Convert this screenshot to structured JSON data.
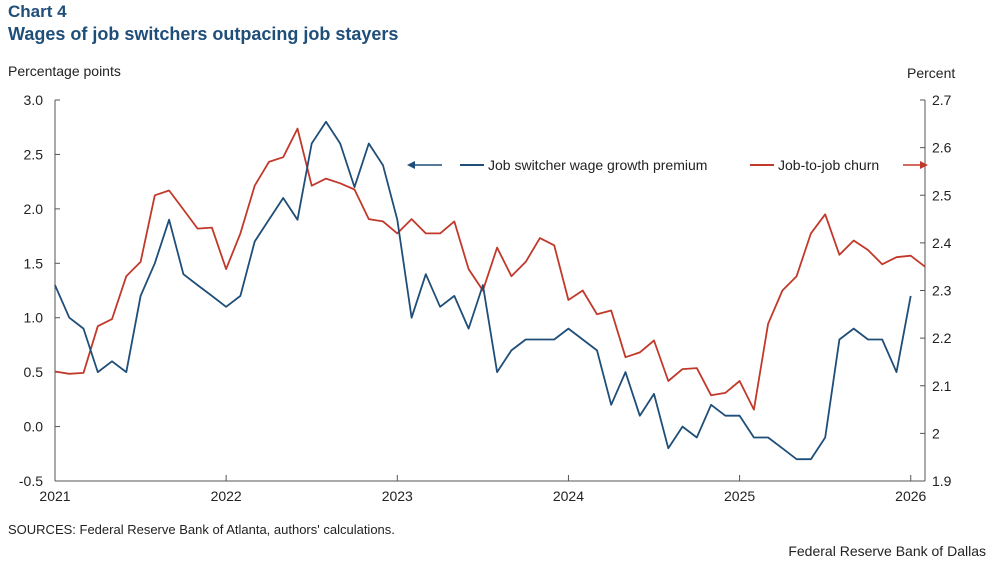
{
  "header": {
    "chart_number": "Chart 4",
    "title": "Wages of job switchers outpacing job stayers"
  },
  "footer": {
    "source": "SOURCES: Federal Reserve Bank of Atlanta, authors' calculations.",
    "organization": "Federal Reserve Bank of Dallas"
  },
  "colors": {
    "switcher": "#1f4e79",
    "churn": "#c0392b",
    "axis": "#555555"
  },
  "chart_data": {
    "type": "line",
    "left_axis": {
      "label": "Percentage points",
      "range": [
        -0.5,
        3.0
      ],
      "ticks": [
        "3.0",
        "2.5",
        "2.0",
        "1.5",
        "1.0",
        "0.5",
        "0.0",
        "-0.5"
      ],
      "tick_values": [
        3.0,
        2.5,
        2.0,
        1.5,
        1.0,
        0.5,
        0.0,
        -0.5
      ]
    },
    "right_axis": {
      "label": "Percent",
      "range": [
        1.9,
        2.7
      ],
      "ticks": [
        "2.7",
        "2.6",
        "2.5",
        "2.4",
        "2.3",
        "2.2",
        "2.1",
        "2",
        "1.9"
      ],
      "tick_values": [
        2.7,
        2.6,
        2.5,
        2.4,
        2.3,
        2.2,
        2.1,
        2.0,
        1.9
      ]
    },
    "x_axis": {
      "range": [
        "2021-01",
        "2026-02"
      ],
      "ticks": [
        "2021",
        "2022",
        "2023",
        "2024",
        "2025",
        "2026"
      ],
      "tick_values": [
        "2021-01",
        "2022-01",
        "2023-01",
        "2024-01",
        "2025-01",
        "2026-01"
      ]
    },
    "grid": false,
    "legend_placement": "top-right",
    "series": [
      {
        "name": "Job switcher wage growth premium",
        "axis": "left",
        "arrow": "left",
        "points": [
          [
            "2021-01",
            1.3
          ],
          [
            "2021-02",
            1.0
          ],
          [
            "2021-03",
            0.9
          ],
          [
            "2021-04",
            0.5
          ],
          [
            "2021-05",
            0.6
          ],
          [
            "2021-06",
            0.5
          ],
          [
            "2021-07",
            1.2
          ],
          [
            "2021-08",
            1.5
          ],
          [
            "2021-09",
            1.9
          ],
          [
            "2021-10",
            1.4
          ],
          [
            "2021-11",
            1.3
          ],
          [
            "2021-12",
            1.2
          ],
          [
            "2022-01",
            1.1
          ],
          [
            "2022-02",
            1.2
          ],
          [
            "2022-03",
            1.7
          ],
          [
            "2022-04",
            1.9
          ],
          [
            "2022-05",
            2.1
          ],
          [
            "2022-06",
            1.9
          ],
          [
            "2022-07",
            2.6
          ],
          [
            "2022-08",
            2.8
          ],
          [
            "2022-09",
            2.6
          ],
          [
            "2022-10",
            2.2
          ],
          [
            "2022-11",
            2.6
          ],
          [
            "2022-12",
            2.4
          ],
          [
            "2023-01",
            1.9
          ],
          [
            "2023-02",
            1.0
          ],
          [
            "2023-03",
            1.4
          ],
          [
            "2023-04",
            1.1
          ],
          [
            "2023-05",
            1.2
          ],
          [
            "2023-06",
            0.9
          ],
          [
            "2023-07",
            1.3
          ],
          [
            "2023-08",
            0.5
          ],
          [
            "2023-09",
            0.7
          ],
          [
            "2023-10",
            0.8
          ],
          [
            "2023-11",
            0.8
          ],
          [
            "2023-12",
            0.8
          ],
          [
            "2024-01",
            0.9
          ],
          [
            "2024-02",
            0.8
          ],
          [
            "2024-03",
            0.7
          ],
          [
            "2024-04",
            0.2
          ],
          [
            "2024-05",
            0.5
          ],
          [
            "2024-06",
            0.1
          ],
          [
            "2024-07",
            0.3
          ],
          [
            "2024-08",
            -0.2
          ],
          [
            "2024-09",
            0.0
          ],
          [
            "2024-10",
            -0.1
          ],
          [
            "2024-11",
            0.2
          ],
          [
            "2024-12",
            0.1
          ],
          [
            "2025-01",
            0.1
          ],
          [
            "2025-02",
            -0.1
          ],
          [
            "2025-03",
            -0.1
          ],
          [
            "2025-04",
            -0.2
          ],
          [
            "2025-05",
            -0.3
          ],
          [
            "2025-06",
            -0.3
          ],
          [
            "2025-07",
            -0.1
          ],
          [
            "2025-08",
            0.8
          ],
          [
            "2025-09",
            0.9
          ],
          [
            "2025-10",
            0.8
          ],
          [
            "2025-11",
            0.8
          ],
          [
            "2025-12",
            0.5
          ],
          [
            "2026-01",
            1.2
          ]
        ]
      },
      {
        "name": "Job-to-job churn",
        "axis": "right",
        "arrow": "right",
        "points": [
          [
            "2021-01",
            2.13
          ],
          [
            "2021-02",
            2.125
          ],
          [
            "2021-03",
            2.127
          ],
          [
            "2021-04",
            2.225
          ],
          [
            "2021-05",
            2.24
          ],
          [
            "2021-06",
            2.33
          ],
          [
            "2021-07",
            2.36
          ],
          [
            "2021-08",
            2.5
          ],
          [
            "2021-09",
            2.51
          ],
          [
            "2021-10",
            2.47
          ],
          [
            "2021-11",
            2.43
          ],
          [
            "2021-12",
            2.432
          ],
          [
            "2022-01",
            2.345
          ],
          [
            "2022-02",
            2.42
          ],
          [
            "2022-03",
            2.52
          ],
          [
            "2022-04",
            2.57
          ],
          [
            "2022-05",
            2.58
          ],
          [
            "2022-06",
            2.64
          ],
          [
            "2022-07",
            2.52
          ],
          [
            "2022-08",
            2.535
          ],
          [
            "2022-09",
            2.525
          ],
          [
            "2022-10",
            2.512
          ],
          [
            "2022-11",
            2.45
          ],
          [
            "2022-12",
            2.445
          ],
          [
            "2023-01",
            2.42
          ],
          [
            "2023-02",
            2.45
          ],
          [
            "2023-03",
            2.42
          ],
          [
            "2023-04",
            2.42
          ],
          [
            "2023-05",
            2.445
          ],
          [
            "2023-06",
            2.345
          ],
          [
            "2023-07",
            2.3
          ],
          [
            "2023-08",
            2.39
          ],
          [
            "2023-09",
            2.33
          ],
          [
            "2023-10",
            2.36
          ],
          [
            "2023-11",
            2.41
          ],
          [
            "2023-12",
            2.395
          ],
          [
            "2024-01",
            2.28
          ],
          [
            "2024-02",
            2.3
          ],
          [
            "2024-03",
            2.25
          ],
          [
            "2024-04",
            2.258
          ],
          [
            "2024-05",
            2.16
          ],
          [
            "2024-06",
            2.17
          ],
          [
            "2024-07",
            2.195
          ],
          [
            "2024-08",
            2.11
          ],
          [
            "2024-09",
            2.135
          ],
          [
            "2024-10",
            2.137
          ],
          [
            "2024-11",
            2.08
          ],
          [
            "2024-12",
            2.085
          ],
          [
            "2025-01",
            2.11
          ],
          [
            "2025-02",
            2.05
          ],
          [
            "2025-03",
            2.23
          ],
          [
            "2025-04",
            2.3
          ],
          [
            "2025-05",
            2.33
          ],
          [
            "2025-06",
            2.42
          ],
          [
            "2025-07",
            2.46
          ],
          [
            "2025-08",
            2.375
          ],
          [
            "2025-09",
            2.405
          ],
          [
            "2025-10",
            2.385
          ],
          [
            "2025-11",
            2.355
          ],
          [
            "2025-12",
            2.37
          ],
          [
            "2026-01",
            2.373
          ],
          [
            "2026-02",
            2.35
          ]
        ]
      }
    ]
  }
}
